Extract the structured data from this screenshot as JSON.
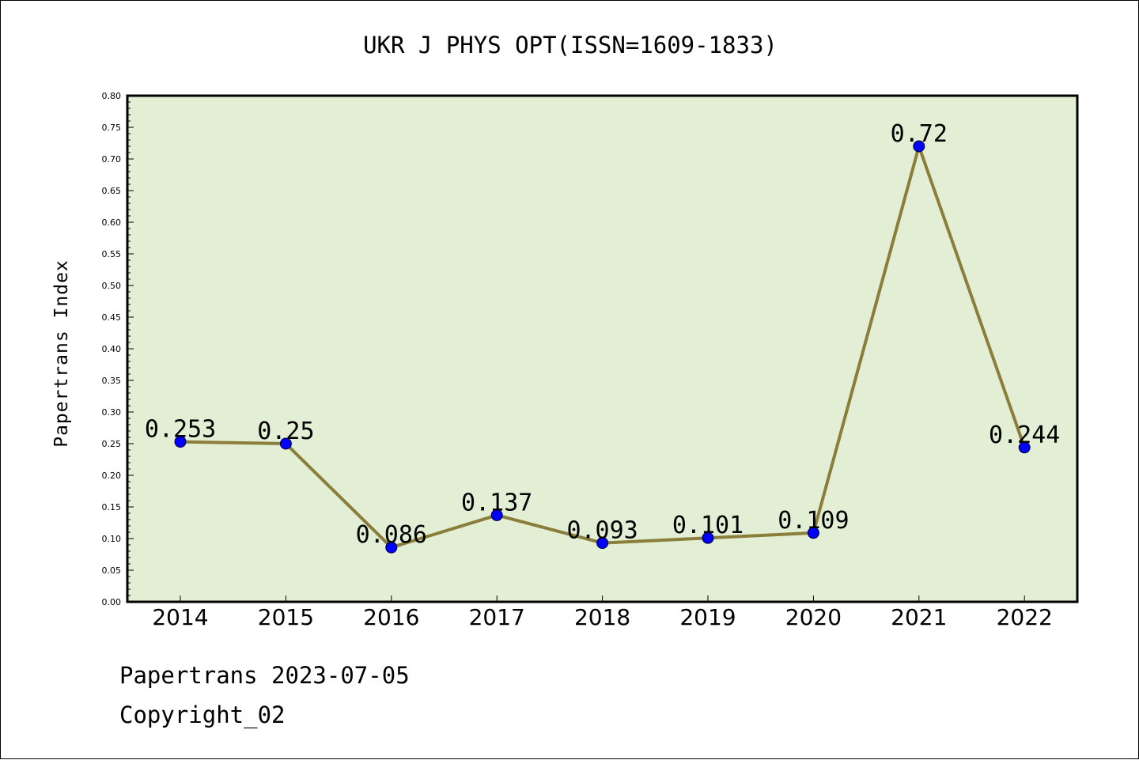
{
  "chart_data": {
    "type": "line",
    "title": "UKR J PHYS OPT(ISSN=1609-1833)",
    "xlabel": "",
    "ylabel": "Papertrans Index",
    "categories": [
      "2014",
      "2015",
      "2016",
      "2017",
      "2018",
      "2019",
      "2020",
      "2021",
      "2022"
    ],
    "values": [
      0.253,
      0.25,
      0.086,
      0.137,
      0.093,
      0.101,
      0.109,
      0.72,
      0.244
    ],
    "data_labels": [
      "0.253",
      "0.25",
      "0.086",
      "0.137",
      "0.093",
      "0.101",
      "0.109",
      "0.72",
      "0.244"
    ],
    "ylim": [
      0,
      0.8
    ],
    "yticks": [
      "0.00",
      "0.05",
      "0.10",
      "0.15",
      "0.20",
      "0.25",
      "0.30",
      "0.35",
      "0.40",
      "0.45",
      "0.50",
      "0.55",
      "0.60",
      "0.65",
      "0.70",
      "0.75",
      "0.80"
    ],
    "grid": false,
    "colors": {
      "plot_background": "#e2efd5",
      "line": "#8b7d3a",
      "marker": "#0000ff"
    }
  },
  "footer": {
    "date_line": "Papertrans 2023-07-05",
    "copyright": "Copyright_02"
  }
}
